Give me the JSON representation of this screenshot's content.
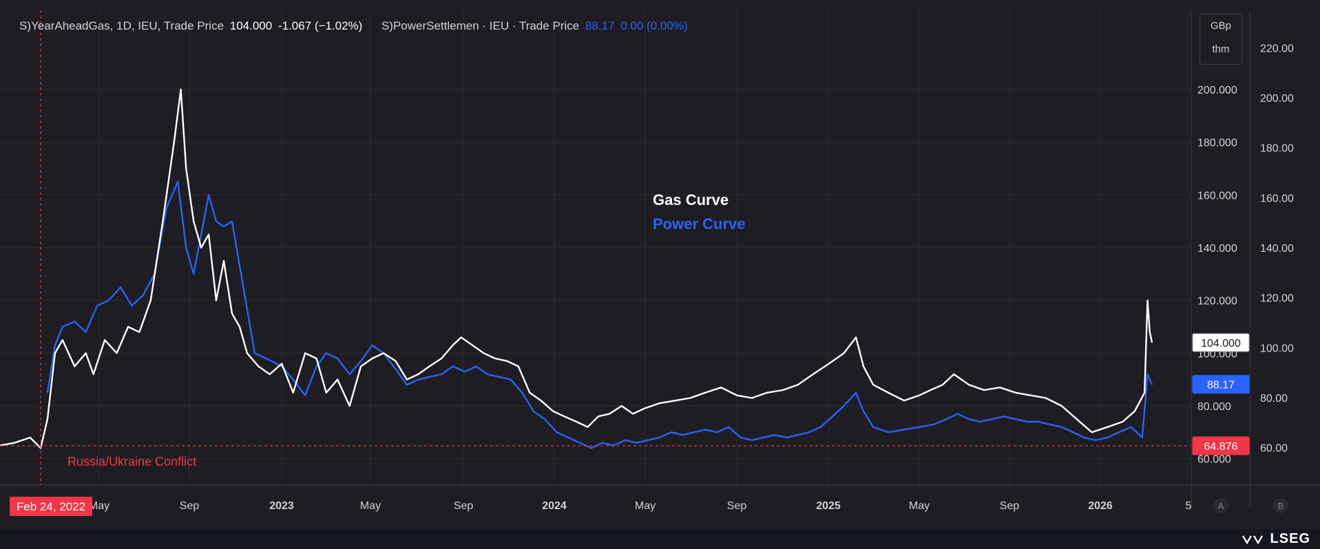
{
  "legend": {
    "gas_name": "S)YearAheadGas, 1D, IEU, Trade Price",
    "gas_last": "104.000",
    "gas_change": "-1.067 (−1.02%)",
    "power_name": "S)PowerSettlemen · IEU · Trade Price",
    "power_last": "88.17",
    "power_change": "0.00 (0.00%)"
  },
  "units": {
    "line1": "GBp",
    "line2": "thm"
  },
  "annotations": {
    "gas_curve": "Gas Curve",
    "power_curve": "Power Curve",
    "conflict": "Russia/Ukraine Conflict",
    "conflict_date": "Feb 24, 2022"
  },
  "branding": {
    "name": "LSEG"
  },
  "colors": {
    "gas": "#ffffff",
    "power": "#2962ff",
    "event": "#f23645",
    "bg": "#1e1d22",
    "grid": "#2a2a30"
  },
  "chart_data": {
    "type": "line",
    "x_ticks": [
      "May",
      "Sep",
      "2023",
      "May",
      "Sep",
      "2024",
      "May",
      "Sep",
      "2025",
      "May",
      "Sep",
      "2026",
      "5"
    ],
    "left_axis": {
      "range": [
        50,
        230
      ],
      "ticks": [
        "200.000",
        "180.000",
        "160.000",
        "140.000",
        "120.000",
        "100.000",
        "80.000",
        "60.000"
      ]
    },
    "right_axis": {
      "range": [
        45,
        235
      ],
      "ticks": [
        "220.00",
        "200.00",
        "180.00",
        "160.00",
        "140.00",
        "120.00",
        "100.00",
        "80.00",
        "60.00"
      ]
    },
    "price_labels": {
      "gas_last": "104.000",
      "power_last": "88.17",
      "reference": "64.876"
    },
    "reference_level": 64.876,
    "event_date": "2022-02-24",
    "axis_buttons": [
      "A",
      "B"
    ],
    "series": [
      {
        "name": "S)YearAheadGas",
        "points": [
          [
            "2022-01-01",
            65
          ],
          [
            "2022-01-20",
            66
          ],
          [
            "2022-02-10",
            68
          ],
          [
            "2022-02-24",
            64
          ],
          [
            "2022-03-05",
            75
          ],
          [
            "2022-03-15",
            100
          ],
          [
            "2022-03-25",
            105
          ],
          [
            "2022-04-10",
            95
          ],
          [
            "2022-04-25",
            100
          ],
          [
            "2022-05-05",
            92
          ],
          [
            "2022-05-20",
            105
          ],
          [
            "2022-06-05",
            100
          ],
          [
            "2022-06-20",
            110
          ],
          [
            "2022-07-05",
            108
          ],
          [
            "2022-07-20",
            120
          ],
          [
            "2022-08-05",
            150
          ],
          [
            "2022-08-20",
            180
          ],
          [
            "2022-08-29",
            200
          ],
          [
            "2022-09-05",
            170
          ],
          [
            "2022-09-15",
            150
          ],
          [
            "2022-09-25",
            140
          ],
          [
            "2022-10-05",
            145
          ],
          [
            "2022-10-15",
            120
          ],
          [
            "2022-10-25",
            135
          ],
          [
            "2022-11-05",
            115
          ],
          [
            "2022-11-15",
            110
          ],
          [
            "2022-11-25",
            100
          ],
          [
            "2022-12-10",
            95
          ],
          [
            "2022-12-25",
            92
          ],
          [
            "2023-01-10",
            96
          ],
          [
            "2023-01-25",
            85
          ],
          [
            "2023-02-10",
            100
          ],
          [
            "2023-02-25",
            98
          ],
          [
            "2023-03-10",
            85
          ],
          [
            "2023-03-25",
            90
          ],
          [
            "2023-04-10",
            80
          ],
          [
            "2023-04-25",
            95
          ],
          [
            "2023-05-10",
            98
          ],
          [
            "2023-05-25",
            100
          ],
          [
            "2023-06-10",
            97
          ],
          [
            "2023-06-25",
            90
          ],
          [
            "2023-07-10",
            92
          ],
          [
            "2023-07-25",
            95
          ],
          [
            "2023-08-10",
            98
          ],
          [
            "2023-08-25",
            103
          ],
          [
            "2023-09-05",
            106
          ],
          [
            "2023-09-20",
            103
          ],
          [
            "2023-10-05",
            100
          ],
          [
            "2023-10-20",
            98
          ],
          [
            "2023-11-05",
            97
          ],
          [
            "2023-11-20",
            95
          ],
          [
            "2023-12-05",
            85
          ],
          [
            "2023-12-20",
            82
          ],
          [
            "2024-01-05",
            78
          ],
          [
            "2024-01-20",
            76
          ],
          [
            "2024-02-05",
            74
          ],
          [
            "2024-02-20",
            72
          ],
          [
            "2024-03-05",
            76
          ],
          [
            "2024-03-20",
            77
          ],
          [
            "2024-04-05",
            80
          ],
          [
            "2024-04-20",
            77
          ],
          [
            "2024-05-05",
            79
          ],
          [
            "2024-05-25",
            81
          ],
          [
            "2024-06-15",
            82
          ],
          [
            "2024-07-05",
            83
          ],
          [
            "2024-07-25",
            85
          ],
          [
            "2024-08-15",
            87
          ],
          [
            "2024-09-05",
            84
          ],
          [
            "2024-09-25",
            83
          ],
          [
            "2024-10-15",
            85
          ],
          [
            "2024-11-05",
            86
          ],
          [
            "2024-11-25",
            88
          ],
          [
            "2024-12-15",
            92
          ],
          [
            "2025-01-05",
            96
          ],
          [
            "2025-01-25",
            100
          ],
          [
            "2025-02-10",
            106
          ],
          [
            "2025-02-20",
            95
          ],
          [
            "2025-03-05",
            88
          ],
          [
            "2025-03-25",
            85
          ],
          [
            "2025-04-15",
            82
          ],
          [
            "2025-05-05",
            84
          ],
          [
            "2025-05-20",
            86
          ],
          [
            "2025-06-05",
            88
          ],
          [
            "2025-06-20",
            92
          ],
          [
            "2025-07-10",
            88
          ],
          [
            "2025-07-30",
            86
          ],
          [
            "2025-08-20",
            87
          ],
          [
            "2025-09-10",
            85
          ],
          [
            "2025-09-30",
            84
          ],
          [
            "2025-10-20",
            83
          ],
          [
            "2025-11-10",
            80
          ],
          [
            "2025-11-30",
            75
          ],
          [
            "2025-12-20",
            70
          ],
          [
            "2026-01-10",
            72
          ],
          [
            "2026-01-30",
            74
          ],
          [
            "2026-02-15",
            78
          ],
          [
            "2026-02-28",
            85
          ],
          [
            "2026-03-04",
            120
          ],
          [
            "2026-03-07",
            108
          ],
          [
            "2026-03-10",
            104
          ]
        ]
      },
      {
        "name": "S)PowerSettlemen",
        "points": [
          [
            "2022-03-05",
            85
          ],
          [
            "2022-03-15",
            103
          ],
          [
            "2022-03-25",
            110
          ],
          [
            "2022-04-10",
            112
          ],
          [
            "2022-04-25",
            108
          ],
          [
            "2022-05-10",
            118
          ],
          [
            "2022-05-25",
            120
          ],
          [
            "2022-06-10",
            125
          ],
          [
            "2022-06-25",
            118
          ],
          [
            "2022-07-10",
            122
          ],
          [
            "2022-07-25",
            130
          ],
          [
            "2022-08-10",
            155
          ],
          [
            "2022-08-25",
            165
          ],
          [
            "2022-09-05",
            140
          ],
          [
            "2022-09-15",
            130
          ],
          [
            "2022-09-25",
            145
          ],
          [
            "2022-10-05",
            160
          ],
          [
            "2022-10-15",
            150
          ],
          [
            "2022-10-25",
            148
          ],
          [
            "2022-11-05",
            150
          ],
          [
            "2022-11-20",
            125
          ],
          [
            "2022-12-05",
            100
          ],
          [
            "2022-12-20",
            98
          ],
          [
            "2023-01-10",
            95
          ],
          [
            "2023-01-25",
            90
          ],
          [
            "2023-02-10",
            84
          ],
          [
            "2023-02-25",
            95
          ],
          [
            "2023-03-10",
            100
          ],
          [
            "2023-03-25",
            98
          ],
          [
            "2023-04-10",
            92
          ],
          [
            "2023-04-25",
            97
          ],
          [
            "2023-05-10",
            103
          ],
          [
            "2023-05-25",
            100
          ],
          [
            "2023-06-10",
            94
          ],
          [
            "2023-06-25",
            88
          ],
          [
            "2023-07-10",
            90
          ],
          [
            "2023-07-25",
            91
          ],
          [
            "2023-08-10",
            92
          ],
          [
            "2023-08-25",
            95
          ],
          [
            "2023-09-10",
            93
          ],
          [
            "2023-09-25",
            95
          ],
          [
            "2023-10-10",
            92
          ],
          [
            "2023-10-25",
            91
          ],
          [
            "2023-11-10",
            90
          ],
          [
            "2023-11-25",
            85
          ],
          [
            "2023-12-10",
            78
          ],
          [
            "2023-12-25",
            75
          ],
          [
            "2024-01-10",
            70
          ],
          [
            "2024-01-25",
            68
          ],
          [
            "2024-02-10",
            66
          ],
          [
            "2024-02-25",
            64
          ],
          [
            "2024-03-10",
            66
          ],
          [
            "2024-03-25",
            65
          ],
          [
            "2024-04-10",
            67
          ],
          [
            "2024-04-25",
            66
          ],
          [
            "2024-05-10",
            67
          ],
          [
            "2024-05-25",
            68
          ],
          [
            "2024-06-10",
            70
          ],
          [
            "2024-06-25",
            69
          ],
          [
            "2024-07-10",
            70
          ],
          [
            "2024-07-25",
            71
          ],
          [
            "2024-08-10",
            70
          ],
          [
            "2024-08-25",
            72
          ],
          [
            "2024-09-10",
            68
          ],
          [
            "2024-09-25",
            67
          ],
          [
            "2024-10-10",
            68
          ],
          [
            "2024-10-25",
            69
          ],
          [
            "2024-11-10",
            68
          ],
          [
            "2024-11-25",
            69
          ],
          [
            "2024-12-10",
            70
          ],
          [
            "2024-12-25",
            72
          ],
          [
            "2025-01-10",
            76
          ],
          [
            "2025-01-25",
            80
          ],
          [
            "2025-02-10",
            85
          ],
          [
            "2025-02-20",
            78
          ],
          [
            "2025-03-05",
            72
          ],
          [
            "2025-03-25",
            70
          ],
          [
            "2025-04-15",
            71
          ],
          [
            "2025-05-05",
            72
          ],
          [
            "2025-05-25",
            73
          ],
          [
            "2025-06-10",
            75
          ],
          [
            "2025-06-25",
            77
          ],
          [
            "2025-07-10",
            75
          ],
          [
            "2025-07-25",
            74
          ],
          [
            "2025-08-10",
            75
          ],
          [
            "2025-08-25",
            76
          ],
          [
            "2025-09-10",
            75
          ],
          [
            "2025-09-25",
            74
          ],
          [
            "2025-10-10",
            74
          ],
          [
            "2025-10-25",
            73
          ],
          [
            "2025-11-10",
            72
          ],
          [
            "2025-11-25",
            70
          ],
          [
            "2025-12-10",
            68
          ],
          [
            "2025-12-25",
            67
          ],
          [
            "2026-01-10",
            68
          ],
          [
            "2026-01-25",
            70
          ],
          [
            "2026-02-10",
            72
          ],
          [
            "2026-02-25",
            68
          ],
          [
            "2026-03-04",
            92
          ],
          [
            "2026-03-10",
            88
          ]
        ]
      }
    ]
  }
}
